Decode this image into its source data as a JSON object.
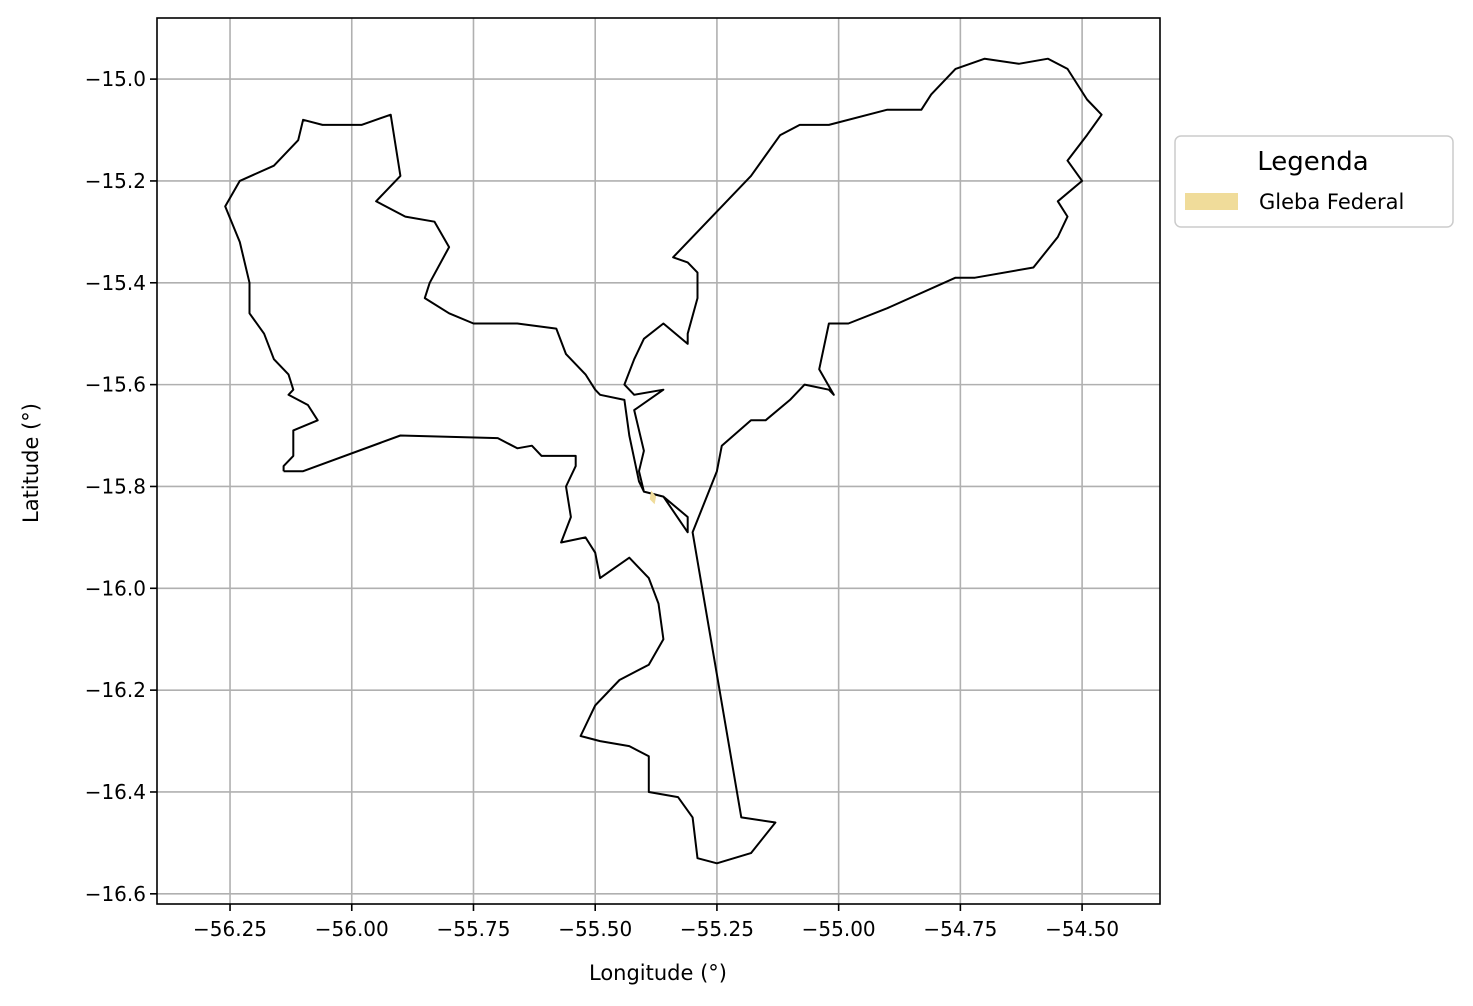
{
  "chart_data": {
    "type": "map",
    "xlabel": "Longitude (°)",
    "ylabel": "Latitude (°)",
    "xlim": [
      -56.4,
      -54.34
    ],
    "ylim": [
      -16.62,
      -14.88
    ],
    "xticks": [
      -56.25,
      -56.0,
      -55.75,
      -55.5,
      -55.25,
      -55.0,
      -54.75,
      -54.5
    ],
    "xtick_labels": [
      "−56.25",
      "−56.00",
      "−55.75",
      "−55.50",
      "−55.25",
      "−55.00",
      "−54.75",
      "−54.50"
    ],
    "yticks": [
      -15.0,
      -15.2,
      -15.4,
      -15.6,
      -15.8,
      -16.0,
      -16.2,
      -16.4,
      -16.6
    ],
    "ytick_labels": [
      "−15.0",
      "−15.2",
      "−15.4",
      "−15.6",
      "−15.8",
      "−16.0",
      "−16.2",
      "−16.4",
      "−16.6"
    ],
    "grid": true,
    "legend": {
      "title": "Legenda",
      "placement": "outside-right",
      "entries": [
        {
          "label": "Gleba Federal",
          "color": "#f0dc9a"
        }
      ]
    },
    "boundary_color": "#000000",
    "boundary": [
      [
        -56.14,
        -15.77
      ],
      [
        -56.1,
        -15.77
      ],
      [
        -55.9,
        -15.7
      ],
      [
        -55.7,
        -15.705
      ],
      [
        -55.66,
        -15.725
      ],
      [
        -55.63,
        -15.72
      ],
      [
        -55.61,
        -15.74
      ],
      [
        -55.54,
        -15.74
      ],
      [
        -55.54,
        -15.76
      ],
      [
        -55.56,
        -15.8
      ],
      [
        -55.55,
        -15.86
      ],
      [
        -55.57,
        -15.91
      ],
      [
        -55.52,
        -15.9
      ],
      [
        -55.5,
        -15.93
      ],
      [
        -55.49,
        -15.98
      ],
      [
        -55.43,
        -15.94
      ],
      [
        -55.39,
        -15.98
      ],
      [
        -55.37,
        -16.03
      ],
      [
        -55.36,
        -16.1
      ],
      [
        -55.39,
        -16.15
      ],
      [
        -55.45,
        -16.18
      ],
      [
        -55.5,
        -16.23
      ],
      [
        -55.53,
        -16.29
      ],
      [
        -55.49,
        -16.3
      ],
      [
        -55.43,
        -16.31
      ],
      [
        -55.39,
        -16.33
      ],
      [
        -55.39,
        -16.4
      ],
      [
        -55.33,
        -16.41
      ],
      [
        -55.3,
        -16.45
      ],
      [
        -55.29,
        -16.53
      ],
      [
        -55.25,
        -16.54
      ],
      [
        -55.18,
        -16.52
      ],
      [
        -55.13,
        -16.46
      ],
      [
        -55.2,
        -16.45
      ],
      [
        -55.3,
        -15.89
      ],
      [
        -55.25,
        -15.77
      ],
      [
        -55.24,
        -15.72
      ],
      [
        -55.18,
        -15.67
      ],
      [
        -55.15,
        -15.67
      ],
      [
        -55.1,
        -15.63
      ],
      [
        -55.07,
        -15.6
      ],
      [
        -55.02,
        -15.61
      ],
      [
        -55.01,
        -15.62
      ],
      [
        -55.04,
        -15.57
      ],
      [
        -55.02,
        -15.48
      ],
      [
        -54.98,
        -15.48
      ],
      [
        -54.9,
        -15.45
      ],
      [
        -54.76,
        -15.39
      ],
      [
        -54.72,
        -15.39
      ],
      [
        -54.6,
        -15.37
      ],
      [
        -54.55,
        -15.31
      ],
      [
        -54.53,
        -15.27
      ],
      [
        -54.55,
        -15.24
      ],
      [
        -54.5,
        -15.2
      ],
      [
        -54.53,
        -15.16
      ],
      [
        -54.49,
        -15.11
      ],
      [
        -54.46,
        -15.07
      ],
      [
        -54.49,
        -15.04
      ],
      [
        -54.53,
        -14.98
      ],
      [
        -54.57,
        -14.96
      ],
      [
        -54.63,
        -14.97
      ],
      [
        -54.7,
        -14.96
      ],
      [
        -54.76,
        -14.98
      ],
      [
        -54.81,
        -15.03
      ],
      [
        -54.83,
        -15.06
      ],
      [
        -54.9,
        -15.06
      ],
      [
        -55.02,
        -15.09
      ],
      [
        -55.08,
        -15.09
      ],
      [
        -55.12,
        -15.11
      ],
      [
        -55.18,
        -15.19
      ],
      [
        -55.34,
        -15.35
      ],
      [
        -55.31,
        -15.36
      ],
      [
        -55.29,
        -15.38
      ],
      [
        -55.29,
        -15.43
      ],
      [
        -55.31,
        -15.5
      ],
      [
        -55.31,
        -15.52
      ],
      [
        -55.36,
        -15.48
      ],
      [
        -55.4,
        -15.51
      ],
      [
        -55.42,
        -15.55
      ],
      [
        -55.44,
        -15.6
      ],
      [
        -55.42,
        -15.62
      ],
      [
        -55.36,
        -15.61
      ],
      [
        -55.42,
        -15.65
      ],
      [
        -55.4,
        -15.73
      ],
      [
        -55.41,
        -15.77
      ],
      [
        -55.4,
        -15.81
      ],
      [
        -55.36,
        -15.82
      ],
      [
        -55.31,
        -15.86
      ],
      [
        -55.31,
        -15.89
      ],
      [
        -55.36,
        -15.82
      ],
      [
        -55.4,
        -15.81
      ],
      [
        -55.41,
        -15.79
      ],
      [
        -55.43,
        -15.7
      ],
      [
        -55.44,
        -15.63
      ],
      [
        -55.49,
        -15.62
      ],
      [
        -55.5,
        -15.61
      ],
      [
        -55.52,
        -15.58
      ],
      [
        -55.56,
        -15.54
      ],
      [
        -55.58,
        -15.49
      ],
      [
        -55.66,
        -15.48
      ],
      [
        -55.75,
        -15.48
      ],
      [
        -55.8,
        -15.46
      ],
      [
        -55.85,
        -15.43
      ],
      [
        -55.84,
        -15.4
      ],
      [
        -55.8,
        -15.33
      ],
      [
        -55.83,
        -15.28
      ],
      [
        -55.89,
        -15.27
      ],
      [
        -55.95,
        -15.24
      ],
      [
        -55.9,
        -15.19
      ],
      [
        -55.92,
        -15.07
      ],
      [
        -55.98,
        -15.09
      ],
      [
        -56.06,
        -15.09
      ],
      [
        -56.1,
        -15.08
      ],
      [
        -56.11,
        -15.12
      ],
      [
        -56.16,
        -15.17
      ],
      [
        -56.23,
        -15.2
      ],
      [
        -56.26,
        -15.25
      ],
      [
        -56.23,
        -15.32
      ],
      [
        -56.21,
        -15.4
      ],
      [
        -56.21,
        -15.46
      ],
      [
        -56.18,
        -15.5
      ],
      [
        -56.16,
        -15.55
      ],
      [
        -56.13,
        -15.58
      ],
      [
        -56.12,
        -15.61
      ],
      [
        -56.13,
        -15.62
      ],
      [
        -56.09,
        -15.64
      ],
      [
        -56.07,
        -15.67
      ],
      [
        -56.12,
        -15.69
      ],
      [
        -56.12,
        -15.74
      ],
      [
        -56.14,
        -15.76
      ],
      [
        -56.14,
        -15.77
      ]
    ],
    "highlight_parcel": {
      "label": "Gleba Federal",
      "color": "#f0dc9a",
      "polygon": [
        [
          -55.385,
          -15.808
        ],
        [
          -55.375,
          -15.82
        ],
        [
          -55.378,
          -15.835
        ],
        [
          -55.388,
          -15.825
        ]
      ]
    }
  }
}
